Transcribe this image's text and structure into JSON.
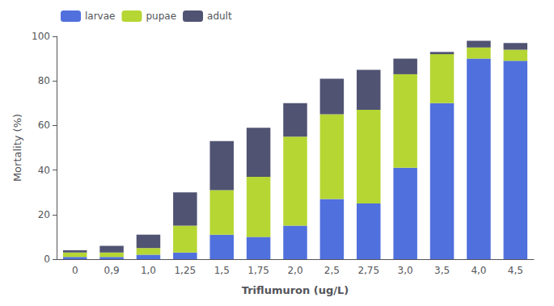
{
  "chart_data": {
    "type": "bar",
    "stacked": true,
    "xlabel": "Triflumuron (ug/L)",
    "ylabel": "Mortality (%)",
    "categories": [
      "0",
      "0,9",
      "1,0",
      "1,25",
      "1,5",
      "1,75",
      "2,0",
      "2,5",
      "2,75",
      "3,0",
      "3,5",
      "4,0",
      "4,5"
    ],
    "series": [
      {
        "name": "larvae",
        "values": [
          1,
          1,
          2,
          3,
          11,
          10,
          15,
          27,
          25,
          41,
          70,
          90,
          89
        ]
      },
      {
        "name": "pupae",
        "values": [
          2,
          2,
          3,
          12,
          20,
          27,
          40,
          38,
          42,
          42,
          22,
          5,
          5
        ]
      },
      {
        "name": "adult",
        "values": [
          1,
          3,
          6,
          15,
          22,
          22,
          15,
          16,
          18,
          7,
          1,
          3,
          3
        ]
      }
    ],
    "ylim": [
      0,
      100
    ],
    "yticks": [
      0,
      20,
      40,
      60,
      80,
      100
    ],
    "grid": false,
    "legend": "upper left"
  }
}
